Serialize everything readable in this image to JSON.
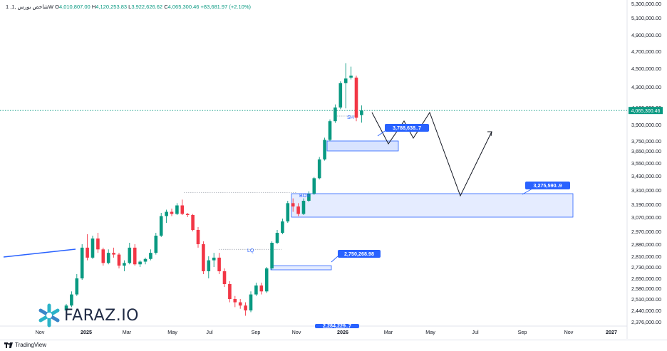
{
  "header": {
    "symbol": "1 ,شاخص بورس ,1W",
    "open_label": "O",
    "open": "4,010,807.00",
    "high_label": "H",
    "high": "4,120,253.83",
    "low_label": "L",
    "low": "3,922,626.62",
    "close_label": "C",
    "close": "4,065,300.46",
    "change": "+83,681.97 (+2.10%)"
  },
  "footer": {
    "brand": "TradingView"
  },
  "logo": {
    "text": "FARAZ.IO"
  },
  "colors": {
    "up": "#089981",
    "down": "#f23645",
    "zone": "#2962ff",
    "label_bg": "#2962ff",
    "price_tag": "#089981"
  },
  "chart_data": {
    "type": "candlestick",
    "timeframe": "1W",
    "y_axis_labels": [
      "5,300,000.00",
      "5,100,000.00",
      "4,900,000.00",
      "4,700,000.00",
      "4,500,000.00",
      "4,300,000.00",
      "4,100,000.00",
      "3,900,000.00",
      "3,750,000.00",
      "3,650,000.00",
      "3,550,000.00",
      "3,430,000.00",
      "3,310,000.00",
      "3,190,000.00",
      "3,070,000.00",
      "2,970,000.00",
      "2,880,000.00",
      "2,810,000.00",
      "2,730,000.00",
      "2,650,000.00",
      "2,580,000.00",
      "2,510,000.00",
      "2,440,000.00",
      "2,376,000.00"
    ],
    "x_axis_labels": [
      "Nov",
      "2025",
      "Mar",
      "May",
      "Jul",
      "Sep",
      "Nov",
      "2026",
      "Mar",
      "May",
      "Jul",
      "Sep",
      "Nov",
      "2027"
    ],
    "last_price": "4,065,300.46",
    "candles": [
      {
        "o": 2440000,
        "h": 2480000,
        "l": 2420000,
        "c": 2470000
      },
      {
        "o": 2470000,
        "h": 2560000,
        "l": 2460000,
        "c": 2540000
      },
      {
        "o": 2540000,
        "h": 2680000,
        "l": 2530000,
        "c": 2650000
      },
      {
        "o": 2650000,
        "h": 2880000,
        "l": 2640000,
        "c": 2860000
      },
      {
        "o": 2860000,
        "h": 2950000,
        "l": 2780000,
        "c": 2800000
      },
      {
        "o": 2800000,
        "h": 2940000,
        "l": 2790000,
        "c": 2920000
      },
      {
        "o": 2920000,
        "h": 2960000,
        "l": 2830000,
        "c": 2850000
      },
      {
        "o": 2850000,
        "h": 2860000,
        "l": 2740000,
        "c": 2760000
      },
      {
        "o": 2760000,
        "h": 2850000,
        "l": 2750000,
        "c": 2830000
      },
      {
        "o": 2830000,
        "h": 2860000,
        "l": 2800000,
        "c": 2820000
      },
      {
        "o": 2820000,
        "h": 2830000,
        "l": 2720000,
        "c": 2740000
      },
      {
        "o": 2740000,
        "h": 2780000,
        "l": 2700000,
        "c": 2760000
      },
      {
        "o": 2760000,
        "h": 2890000,
        "l": 2750000,
        "c": 2860000
      },
      {
        "o": 2860000,
        "h": 2880000,
        "l": 2740000,
        "c": 2750000
      },
      {
        "o": 2750000,
        "h": 2780000,
        "l": 2730000,
        "c": 2770000
      },
      {
        "o": 2770000,
        "h": 2800000,
        "l": 2750000,
        "c": 2790000
      },
      {
        "o": 2790000,
        "h": 2850000,
        "l": 2780000,
        "c": 2830000
      },
      {
        "o": 2830000,
        "h": 2960000,
        "l": 2820000,
        "c": 2940000
      },
      {
        "o": 2940000,
        "h": 3110000,
        "l": 2930000,
        "c": 3080000
      },
      {
        "o": 3080000,
        "h": 3140000,
        "l": 3030000,
        "c": 3120000
      },
      {
        "o": 3120000,
        "h": 3150000,
        "l": 3080000,
        "c": 3100000
      },
      {
        "o": 3100000,
        "h": 3200000,
        "l": 3090000,
        "c": 3180000
      },
      {
        "o": 3180000,
        "h": 3230000,
        "l": 3090000,
        "c": 3100000
      },
      {
        "o": 3100000,
        "h": 3110000,
        "l": 3070000,
        "c": 3090000
      },
      {
        "o": 3090000,
        "h": 3100000,
        "l": 2970000,
        "c": 2980000
      },
      {
        "o": 2980000,
        "h": 3000000,
        "l": 2860000,
        "c": 2880000
      },
      {
        "o": 2880000,
        "h": 2900000,
        "l": 2680000,
        "c": 2700000
      },
      {
        "o": 2700000,
        "h": 2810000,
        "l": 2650000,
        "c": 2780000
      },
      {
        "o": 2780000,
        "h": 2830000,
        "l": 2730000,
        "c": 2800000
      },
      {
        "o": 2800000,
        "h": 2830000,
        "l": 2680000,
        "c": 2700000
      },
      {
        "o": 2700000,
        "h": 2720000,
        "l": 2590000,
        "c": 2610000
      },
      {
        "o": 2610000,
        "h": 2630000,
        "l": 2490000,
        "c": 2510000
      },
      {
        "o": 2510000,
        "h": 2530000,
        "l": 2460000,
        "c": 2490000
      },
      {
        "o": 2490000,
        "h": 2510000,
        "l": 2450000,
        "c": 2470000
      },
      {
        "o": 2470000,
        "h": 2490000,
        "l": 2410000,
        "c": 2440000
      },
      {
        "o": 2440000,
        "h": 2560000,
        "l": 2430000,
        "c": 2540000
      },
      {
        "o": 2540000,
        "h": 2620000,
        "l": 2530000,
        "c": 2600000
      },
      {
        "o": 2600000,
        "h": 2620000,
        "l": 2540000,
        "c": 2560000
      },
      {
        "o": 2560000,
        "h": 2730000,
        "l": 2550000,
        "c": 2720000
      },
      {
        "o": 2720000,
        "h": 2900000,
        "l": 2710000,
        "c": 2890000
      },
      {
        "o": 2890000,
        "h": 2980000,
        "l": 2880000,
        "c": 2960000
      },
      {
        "o": 2960000,
        "h": 3060000,
        "l": 2950000,
        "c": 3040000
      },
      {
        "o": 3040000,
        "h": 3220000,
        "l": 3030000,
        "c": 3200000
      },
      {
        "o": 3200000,
        "h": 3240000,
        "l": 3120000,
        "c": 3170000
      },
      {
        "o": 3170000,
        "h": 3200000,
        "l": 3080000,
        "c": 3100000
      },
      {
        "o": 3100000,
        "h": 3240000,
        "l": 3090000,
        "c": 3220000
      },
      {
        "o": 3220000,
        "h": 3300000,
        "l": 3210000,
        "c": 3280000
      },
      {
        "o": 3280000,
        "h": 3420000,
        "l": 3270000,
        "c": 3410000
      },
      {
        "o": 3410000,
        "h": 3600000,
        "l": 3400000,
        "c": 3580000
      },
      {
        "o": 3580000,
        "h": 3780000,
        "l": 3570000,
        "c": 3760000
      },
      {
        "o": 3760000,
        "h": 3960000,
        "l": 3750000,
        "c": 3940000
      },
      {
        "o": 3940000,
        "h": 4130000,
        "l": 3920000,
        "c": 4100000
      },
      {
        "o": 4100000,
        "h": 4360000,
        "l": 4080000,
        "c": 4340000
      },
      {
        "o": 4340000,
        "h": 4560000,
        "l": 4090000,
        "c": 4390000
      },
      {
        "o": 4400000,
        "h": 4520000,
        "l": 4380000,
        "c": 4420000
      },
      {
        "o": 4400000,
        "h": 4420000,
        "l": 3940000,
        "c": 3980000
      },
      {
        "o": 4010807,
        "h": 4120254,
        "l": 3922627,
        "c": 4065300
      }
    ],
    "annotations": {
      "labels": [
        "SH",
        "BOS",
        "LQ"
      ],
      "zones": [
        "3,788,638..7",
        "3,275,590..9",
        "2,750,268.98",
        "2,284,229..7"
      ]
    }
  }
}
